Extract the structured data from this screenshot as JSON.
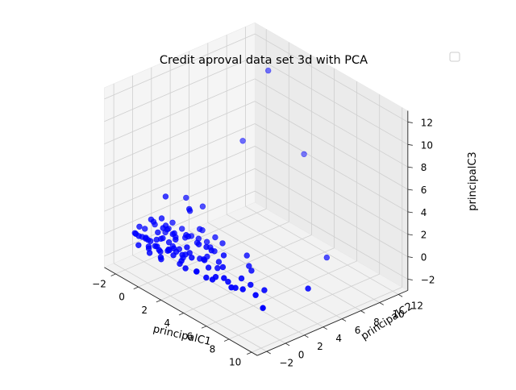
{
  "chart_data": {
    "type": "scatter",
    "projection": "3d",
    "title": "Credit aproval data set 3d with PCA",
    "xlabel": "principalC1",
    "ylabel": "principalC2",
    "zlabel": "principalC3",
    "xlim": [
      -3,
      10.5
    ],
    "ylim": [
      -3,
      13
    ],
    "zlim": [
      -3,
      13
    ],
    "xticks": [
      -2,
      0,
      2,
      4,
      6,
      8,
      10
    ],
    "yticks": [
      -2,
      0,
      2,
      4,
      6,
      8,
      10,
      12
    ],
    "zticks": [
      -2,
      0,
      2,
      4,
      6,
      8,
      10,
      12
    ],
    "grid": true,
    "legend": "top-right, empty",
    "marker_color": "#0000ff",
    "series": [
      {
        "points": [
          [
            -1.8,
            -1.2,
            0.1
          ],
          [
            -1.5,
            -0.8,
            -0.2
          ],
          [
            -1.2,
            -1.5,
            0.3
          ],
          [
            -1.0,
            -0.5,
            -0.4
          ],
          [
            -0.8,
            -1.0,
            0.0
          ],
          [
            -0.6,
            -0.2,
            0.5
          ],
          [
            -0.5,
            -1.3,
            -0.3
          ],
          [
            -0.3,
            -0.7,
            0.2
          ],
          [
            -0.1,
            -1.1,
            -0.1
          ],
          [
            0.0,
            -0.4,
            0.4
          ],
          [
            0.2,
            -0.9,
            -0.5
          ],
          [
            0.3,
            -0.1,
            0.1
          ],
          [
            0.5,
            -1.4,
            0.0
          ],
          [
            0.6,
            -0.6,
            -0.3
          ],
          [
            0.8,
            0.0,
            0.6
          ],
          [
            1.0,
            -1.0,
            0.2
          ],
          [
            1.1,
            -0.3,
            -0.2
          ],
          [
            1.3,
            -0.8,
            0.4
          ],
          [
            1.5,
            0.2,
            -0.4
          ],
          [
            1.6,
            -1.2,
            0.1
          ],
          [
            -1.4,
            0.3,
            0.8
          ],
          [
            -1.0,
            0.6,
            -0.6
          ],
          [
            -0.7,
            0.9,
            0.3
          ],
          [
            -0.4,
            0.4,
            1.0
          ],
          [
            -0.2,
            1.2,
            -0.2
          ],
          [
            0.1,
            0.7,
            0.5
          ],
          [
            0.4,
            1.5,
            0.0
          ],
          [
            0.7,
            0.5,
            -0.5
          ],
          [
            0.9,
            1.0,
            0.7
          ],
          [
            1.2,
            1.8,
            -0.1
          ],
          [
            -1.6,
            -0.3,
            -0.6
          ],
          [
            -1.3,
            -1.7,
            0.5
          ],
          [
            -0.9,
            -1.9,
            -0.2
          ],
          [
            -0.5,
            -1.6,
            0.6
          ],
          [
            0.0,
            -1.8,
            -0.4
          ],
          [
            0.4,
            -1.5,
            0.3
          ],
          [
            0.9,
            -1.7,
            -0.3
          ],
          [
            1.4,
            -1.4,
            0.5
          ],
          [
            1.8,
            -0.5,
            0.0
          ],
          [
            2.0,
            -1.0,
            -0.5
          ],
          [
            2.2,
            -0.2,
            0.3
          ],
          [
            2.4,
            -1.3,
            0.1
          ],
          [
            2.6,
            0.4,
            -0.2
          ],
          [
            2.8,
            -0.7,
            0.4
          ],
          [
            3.0,
            -1.6,
            -0.1
          ],
          [
            3.2,
            0.1,
            0.2
          ],
          [
            3.4,
            -0.9,
            -0.4
          ],
          [
            3.6,
            -0.3,
            0.5
          ],
          [
            3.8,
            -1.4,
            0.0
          ],
          [
            4.0,
            0.6,
            -0.3
          ],
          [
            2.1,
            0.9,
            0.6
          ],
          [
            2.5,
            1.3,
            -0.4
          ],
          [
            2.9,
            1.6,
            0.2
          ],
          [
            3.3,
            0.8,
            0.8
          ],
          [
            3.7,
            1.1,
            -0.1
          ],
          [
            4.2,
            -0.6,
            0.3
          ],
          [
            4.5,
            -1.2,
            -0.2
          ],
          [
            4.8,
            0.2,
            0.4
          ],
          [
            5.0,
            -0.8,
            0.0
          ],
          [
            5.3,
            -1.5,
            0.2
          ],
          [
            5.6,
            -0.2,
            -0.3
          ],
          [
            5.9,
            -1.0,
            0.5
          ],
          [
            6.2,
            0.5,
            0.1
          ],
          [
            6.5,
            -0.5,
            -0.2
          ],
          [
            6.8,
            -1.3,
            0.3
          ],
          [
            -0.3,
            2.0,
            0.2
          ],
          [
            0.2,
            2.4,
            -0.3
          ],
          [
            0.6,
            2.8,
            0.4
          ],
          [
            1.0,
            2.2,
            0.0
          ],
          [
            -0.8,
            1.6,
            0.6
          ],
          [
            -1.1,
            1.2,
            -0.3
          ],
          [
            0.5,
            3.2,
            0.1
          ],
          [
            1.4,
            2.6,
            -0.2
          ],
          [
            1.8,
            3.0,
            0.3
          ],
          [
            2.2,
            2.0,
            0.0
          ],
          [
            -1.7,
            0.8,
            0.2
          ],
          [
            -1.9,
            -0.6,
            0.4
          ],
          [
            -2.0,
            0.1,
            -0.1
          ],
          [
            -1.2,
            -0.2,
            1.3
          ],
          [
            -0.6,
            0.2,
            1.6
          ],
          [
            0.1,
            -0.5,
            1.4
          ],
          [
            0.8,
            -0.3,
            1.2
          ],
          [
            1.5,
            0.5,
            1.1
          ],
          [
            -0.2,
            0.9,
            -0.9
          ],
          [
            0.6,
            -1.3,
            -0.8
          ],
          [
            1.2,
            0.3,
            -0.9
          ],
          [
            -0.9,
            -0.8,
            -0.9
          ],
          [
            2.3,
            -0.6,
            1.0
          ],
          [
            3.1,
            0.5,
            1.1
          ],
          [
            4.3,
            0.9,
            0.9
          ],
          [
            1.0,
            1.2,
            3.0
          ],
          [
            -0.5,
            0.5,
            3.5
          ],
          [
            0.4,
            2.0,
            2.2
          ],
          [
            7.0,
            0.5,
            0.0
          ],
          [
            7.4,
            -0.8,
            0.3
          ],
          [
            7.8,
            1.0,
            -0.2
          ],
          [
            8.2,
            -0.4,
            0.1
          ],
          [
            6.0,
            1.8,
            0.2
          ],
          [
            5.2,
            2.5,
            -0.1
          ],
          [
            4.6,
            3.0,
            0.3
          ],
          [
            9.5,
            -1.2,
            0.0
          ],
          [
            10.0,
            3.0,
            0.5
          ],
          [
            7.5,
            8.0,
            0.0
          ],
          [
            3.0,
            11.0,
            5.5
          ],
          [
            0.5,
            7.5,
            6.5
          ],
          [
            1.5,
            9.0,
            12.8
          ],
          [
            -0.6,
            2.8,
            2.5
          ],
          [
            0.2,
            3.6,
            1.9
          ],
          [
            -1.4,
            1.9,
            -0.4
          ],
          [
            2.7,
            2.7,
            0.4
          ]
        ]
      }
    ]
  }
}
